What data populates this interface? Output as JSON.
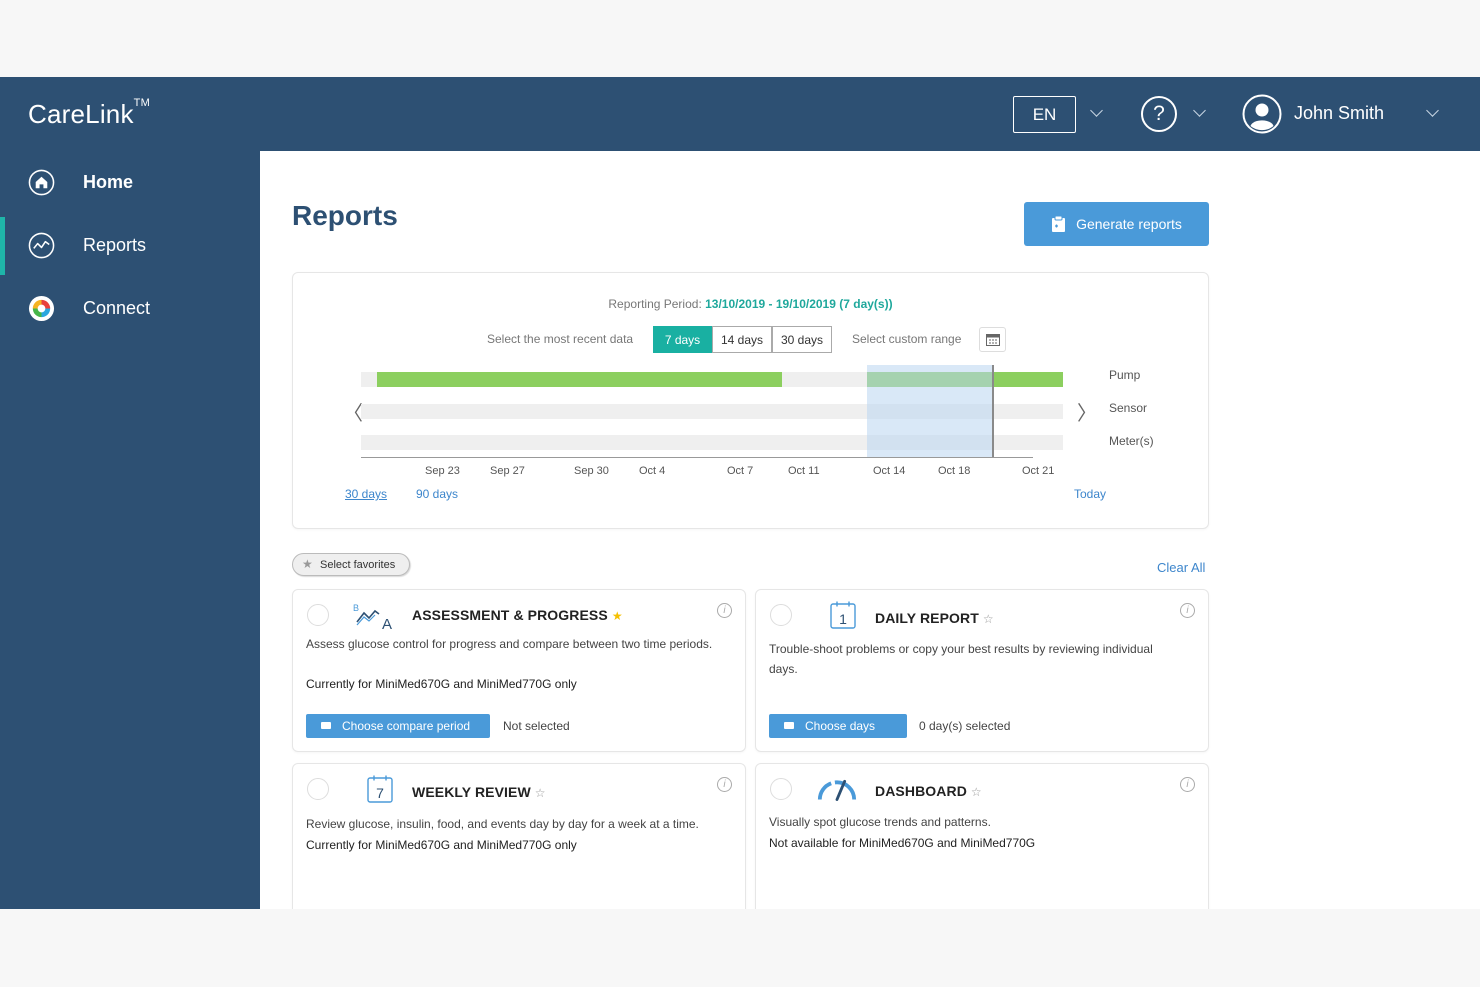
{
  "header": {
    "brand": "CareLink",
    "brand_tm": "TM",
    "language": "EN",
    "help_symbol": "?",
    "user_name": "John Smith",
    "icons": [
      "chevron-down-icon",
      "help-icon",
      "user-avatar-icon"
    ]
  },
  "sidebar": {
    "items": [
      {
        "label": "Home",
        "icon": "home-icon",
        "active": false
      },
      {
        "label": "Reports",
        "icon": "trend-icon",
        "active": true
      },
      {
        "label": "Connect",
        "icon": "connect-icon",
        "active": false
      }
    ]
  },
  "main": {
    "title": "Reports",
    "generate_label": "Generate reports",
    "reporting_period_label": "Reporting Period:",
    "reporting_period_value": "13/10/2019 - 19/10/2019 (7 day(s))",
    "select_recent_label": "Select the most recent data",
    "ranges": [
      "7 days",
      "14 days",
      "30 days"
    ],
    "selected_range": "7 days",
    "custom_range_label": "Select custom range",
    "timeline": {
      "rows": [
        "Pump",
        "Sensor",
        "Meter(s)"
      ],
      "ticks": [
        "Sep 23",
        "Sep 27",
        "Sep 30",
        "Oct 4",
        "Oct 7",
        "Oct 11",
        "Oct 14",
        "Oct 18",
        "Oct 21"
      ],
      "links": [
        "30 days",
        "90 days"
      ],
      "today_label": "Today",
      "prev_symbol": "〈",
      "next_symbol": "〉",
      "pump_data_segments": [
        [
          "Sep 20",
          "Oct 9"
        ],
        [
          "Oct 13",
          "Oct 26"
        ]
      ],
      "selection_window": [
        "Oct 13",
        "Oct 19"
      ]
    },
    "favorites_label": "Select favorites",
    "clear_all_label": "Clear All"
  },
  "reports": [
    {
      "title": "ASSESSMENT & PROGRESS",
      "favorite": true,
      "icon": "assessment-icon",
      "description": "Assess glucose control for progress and compare between two time periods.",
      "note": "Currently for MiniMed670G and MiniMed770G only",
      "button": "Choose compare period",
      "status": "Not selected"
    },
    {
      "title": "DAILY REPORT",
      "favorite": false,
      "icon": "calendar-day-icon",
      "calendar_number": "1",
      "description": "Trouble-shoot problems or copy your best results by reviewing individual days.",
      "note": "",
      "button": "Choose days",
      "status": "0 day(s) selected"
    },
    {
      "title": "WEEKLY REVIEW",
      "favorite": false,
      "icon": "calendar-week-icon",
      "calendar_number": "7",
      "description": "Review glucose, insulin, food, and events day by day for a week at a time.",
      "note": "Currently for MiniMed670G and MiniMed770G only"
    },
    {
      "title": "DASHBOARD",
      "favorite": false,
      "icon": "gauge-icon",
      "description": "Visually spot glucose trends and patterns.",
      "note": "Not available for MiniMed670G and MiniMed770G"
    }
  ],
  "colors": {
    "navy": "#2d5073",
    "accent_teal": "#19b0a2",
    "button_blue": "#4a9ad9",
    "data_green": "#8ccf5f",
    "selection_blue": "#cfe1f3",
    "favorite_star": "#f5c000"
  }
}
